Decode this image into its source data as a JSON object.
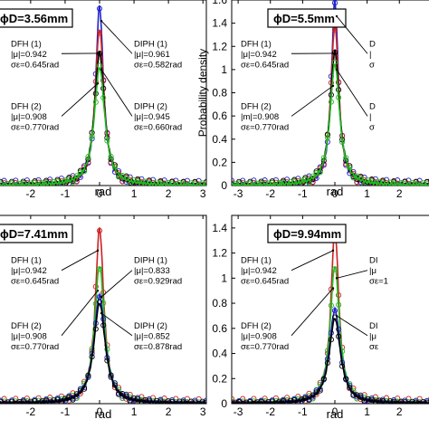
{
  "chart_data": [
    {
      "type": "line",
      "title": "ϕD=3.56mm",
      "xlabel": "rad",
      "ylabel": "",
      "xlim": [
        -3.1,
        3.1
      ],
      "ylim": [
        0,
        1.6
      ],
      "xticks": [
        "-2",
        "-1",
        "0",
        "1",
        "2",
        "3"
      ],
      "yticks": [],
      "series": [
        {
          "color": "#2222cc",
          "peak": 1.55
        },
        {
          "color": "#cc2222",
          "peak": 1.35
        },
        {
          "color": "#000000",
          "peak": 1.15
        },
        {
          "color": "#22bb22",
          "peak": 1.02
        }
      ],
      "annotations": [
        {
          "lines": [
            "DFH (1)",
            "|μ|=0.942",
            "σε=0.645rad"
          ],
          "side": "left",
          "ty": 1.2,
          "py": 1.14
        },
        {
          "lines": [
            "DFH (2)",
            "|μ|=0.908",
            "σε=0.770rad"
          ],
          "side": "left",
          "ty": 0.66,
          "py": 0.88
        },
        {
          "lines": [
            "DIPH (1)",
            "|μ|=0.961",
            "σε=0.582rad"
          ],
          "side": "right",
          "ty": 1.2,
          "py": 1.42
        },
        {
          "lines": [
            "DIPH (2)",
            "|μ|=0.945",
            "σε=0.660rad"
          ],
          "side": "right",
          "ty": 0.66,
          "py": 1.0
        }
      ]
    },
    {
      "type": "line",
      "title": "ϕD=5.5mm",
      "xlabel": "rad",
      "ylabel": "Probability density",
      "xlim": [
        -3.2,
        3.2
      ],
      "ylim": [
        0,
        1.6
      ],
      "xticks": [
        "-3",
        "-2",
        "-1",
        "0",
        "1",
        "2",
        "3"
      ],
      "yticks": [
        "0",
        "0.2",
        "0.4",
        "0.6",
        "0.8",
        "1",
        "1.2",
        "1.4",
        "1.6"
      ],
      "series": [
        {
          "color": "#2222cc",
          "peak": 1.6
        },
        {
          "color": "#cc2222",
          "peak": 1.38
        },
        {
          "color": "#000000",
          "peak": 1.16
        },
        {
          "color": "#22bb22",
          "peak": 1.05
        }
      ],
      "annotations": [
        {
          "lines": [
            "DFH (1)",
            "|μ|=0.942",
            "σε=0.645rad"
          ],
          "side": "left",
          "ty": 1.2,
          "py": 1.14
        },
        {
          "lines": [
            "DFH (2)",
            "|m|=0.908",
            "σε=0.770rad"
          ],
          "side": "left",
          "ty": 0.66,
          "py": 0.86
        },
        {
          "lines": [
            "D",
            "|",
            "σ"
          ],
          "side": "right",
          "ty": 1.2,
          "py": 1.46
        },
        {
          "lines": [
            "D",
            "|",
            "σ"
          ],
          "side": "right",
          "ty": 0.66,
          "py": 1.0
        }
      ]
    },
    {
      "type": "line",
      "title": "ϕD=7.41mm",
      "xlabel": "rad",
      "ylabel": "",
      "xlim": [
        -3.1,
        3.1
      ],
      "ylim": [
        0,
        1.5
      ],
      "xticks": [
        "-2",
        "-1",
        "0",
        "1",
        "2",
        "3"
      ],
      "yticks": [],
      "series": [
        {
          "color": "#cc2222",
          "peak": 1.4
        },
        {
          "color": "#22bb22",
          "peak": 1.1
        },
        {
          "color": "#2222cc",
          "peak": 0.86
        },
        {
          "color": "#000000",
          "peak": 0.8
        }
      ],
      "annotations": [
        {
          "lines": [
            "DFH (1)",
            "|μ|=0.942",
            "σε=0.645rad"
          ],
          "side": "left",
          "ty": 1.12,
          "py": 1.22
        },
        {
          "lines": [
            "DFH (2)",
            "|μ|=0.908",
            "σε=0.770rad"
          ],
          "side": "left",
          "ty": 0.6,
          "py": 0.9
        },
        {
          "lines": [
            "DIPH (1)",
            "|μ|=0.833",
            "σε=0.929rad"
          ],
          "side": "right",
          "ty": 1.12,
          "py": 0.85
        },
        {
          "lines": [
            "DIPH (2)",
            "|μ|=0.852",
            "σε=0.878rad"
          ],
          "side": "right",
          "ty": 0.6,
          "py": 0.72
        }
      ]
    },
    {
      "type": "line",
      "title": "ϕD=9.94mm",
      "xlabel": "rad",
      "ylabel": "",
      "xlim": [
        -3.2,
        3.2
      ],
      "ylim": [
        0,
        1.5
      ],
      "xticks": [
        "-3",
        "-2",
        "-1",
        "0",
        "1",
        "2",
        "3"
      ],
      "yticks": [
        "0",
        "0.2",
        "0.4",
        "0.6",
        "0.8",
        "1",
        "1.2",
        "1.4"
      ],
      "series": [
        {
          "color": "#cc2222",
          "peak": 1.4
        },
        {
          "color": "#22bb22",
          "peak": 1.1
        },
        {
          "color": "#2222cc",
          "peak": 0.75
        },
        {
          "color": "#000000",
          "peak": 0.68
        }
      ],
      "annotations": [
        {
          "lines": [
            "DFH (1)",
            "|μ|=0.942",
            "σε=0.645rad"
          ],
          "side": "left",
          "ty": 1.12,
          "py": 1.22
        },
        {
          "lines": [
            "DFH (2)",
            "|μ|=0.908",
            "σε=0.770rad"
          ],
          "side": "left",
          "ty": 0.6,
          "py": 0.92
        },
        {
          "lines": [
            "DI",
            "|μ",
            "σε=1"
          ],
          "side": "right",
          "ty": 1.12,
          "py": 1.0
        },
        {
          "lines": [
            "DI",
            "|μ",
            "σε"
          ],
          "side": "right",
          "ty": 0.6,
          "py": 0.7
        }
      ]
    }
  ]
}
